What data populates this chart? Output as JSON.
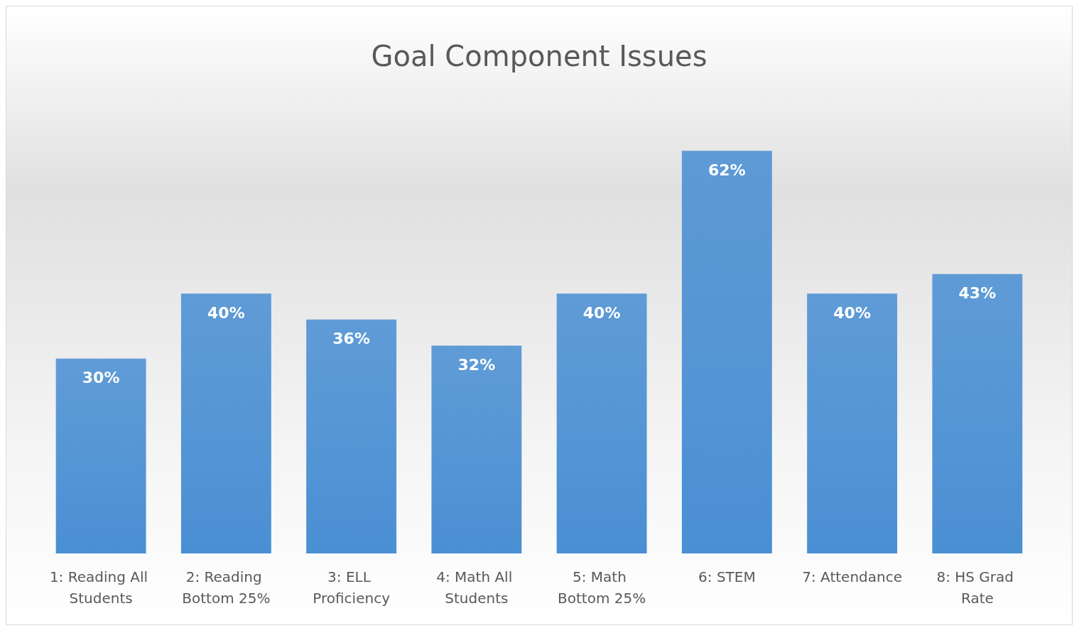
{
  "chart_data": {
    "type": "bar",
    "title": "Goal Component Issues",
    "categories": [
      "1: Reading All Students",
      "2: Reading Bottom 25%",
      "3: ELL Proficiency",
      "4: Math All Students",
      "5: Math Bottom 25%",
      "6: STEM",
      "7: Attendance",
      "8: HS Grad Rate"
    ],
    "values": [
      30,
      40,
      36,
      32,
      40,
      62,
      40,
      43
    ],
    "value_labels": [
      "30%",
      "40%",
      "36%",
      "32%",
      "40%",
      "62%",
      "40%",
      "43%"
    ],
    "color": "#4a8fd3"
  }
}
